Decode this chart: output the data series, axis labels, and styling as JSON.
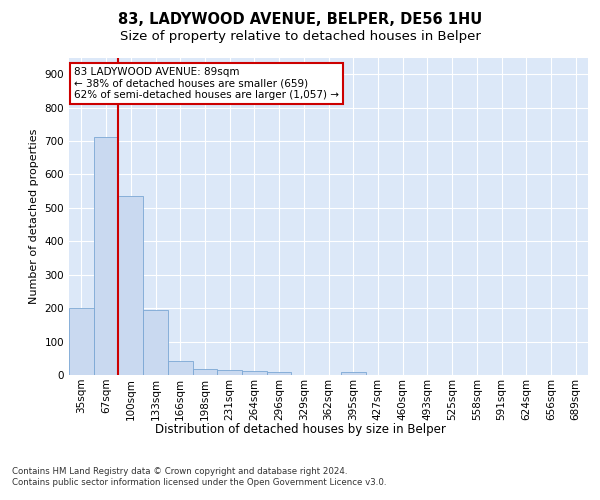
{
  "title1": "83, LADYWOOD AVENUE, BELPER, DE56 1HU",
  "title2": "Size of property relative to detached houses in Belper",
  "xlabel": "Distribution of detached houses by size in Belper",
  "ylabel": "Number of detached properties",
  "categories": [
    "35sqm",
    "67sqm",
    "100sqm",
    "133sqm",
    "166sqm",
    "198sqm",
    "231sqm",
    "264sqm",
    "296sqm",
    "329sqm",
    "362sqm",
    "395sqm",
    "427sqm",
    "460sqm",
    "493sqm",
    "525sqm",
    "558sqm",
    "591sqm",
    "624sqm",
    "656sqm",
    "689sqm"
  ],
  "values": [
    200,
    712,
    535,
    193,
    42,
    19,
    15,
    12,
    9,
    0,
    0,
    8,
    0,
    0,
    0,
    0,
    0,
    0,
    0,
    0,
    0
  ],
  "bar_color": "#c9d9f0",
  "bar_edge_color": "#7ba7d4",
  "vline_color": "#cc0000",
  "vline_x_index": 1.5,
  "annotation_text": "83 LADYWOOD AVENUE: 89sqm\n← 38% of detached houses are smaller (659)\n62% of semi-detached houses are larger (1,057) →",
  "annotation_box_color": "#ffffff",
  "annotation_box_edge": "#cc0000",
  "ylim": [
    0,
    950
  ],
  "yticks": [
    0,
    100,
    200,
    300,
    400,
    500,
    600,
    700,
    800,
    900
  ],
  "footer": "Contains HM Land Registry data © Crown copyright and database right 2024.\nContains public sector information licensed under the Open Government Licence v3.0.",
  "bg_color": "#dce8f8",
  "grid_color": "#ffffff",
  "title1_fontsize": 10.5,
  "title2_fontsize": 9.5,
  "xlabel_fontsize": 8.5,
  "ylabel_fontsize": 8.0,
  "tick_fontsize": 7.5,
  "annotation_fontsize": 7.5,
  "footer_fontsize": 6.2
}
